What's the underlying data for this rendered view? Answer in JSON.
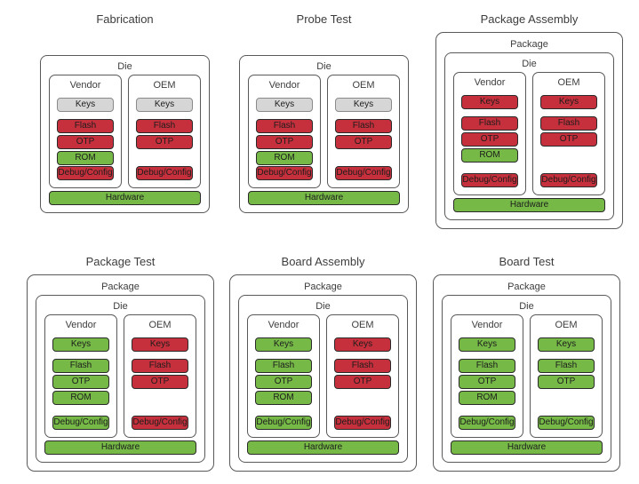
{
  "palette": {
    "red": "#c6303c",
    "green": "#76b947",
    "gray": "#d6d6d6"
  },
  "stages": [
    {
      "title": "Fabrication",
      "die_label": "Die",
      "vendor": {
        "label": "Vendor",
        "blocks": [
          {
            "label": "Keys",
            "color": "gray"
          },
          {
            "label": "Flash",
            "color": "red"
          },
          {
            "label": "OTP",
            "color": "red"
          },
          {
            "label": "ROM",
            "color": "green"
          },
          {
            "label": "Debug/Config",
            "color": "red"
          }
        ]
      },
      "oem": {
        "label": "OEM",
        "blocks": [
          {
            "label": "Keys",
            "color": "gray"
          },
          {
            "label": "Flash",
            "color": "red"
          },
          {
            "label": "OTP",
            "color": "red"
          },
          {
            "label": "Debug/Config",
            "color": "red"
          }
        ]
      },
      "hardware": {
        "label": "Hardware",
        "color": "green"
      }
    },
    {
      "title": "Probe Test",
      "die_label": "Die",
      "vendor": {
        "label": "Vendor",
        "blocks": [
          {
            "label": "Keys",
            "color": "gray"
          },
          {
            "label": "Flash",
            "color": "red"
          },
          {
            "label": "OTP",
            "color": "red"
          },
          {
            "label": "ROM",
            "color": "green"
          },
          {
            "label": "Debug/Config",
            "color": "red"
          }
        ]
      },
      "oem": {
        "label": "OEM",
        "blocks": [
          {
            "label": "Keys",
            "color": "gray"
          },
          {
            "label": "Flash",
            "color": "red"
          },
          {
            "label": "OTP",
            "color": "red"
          },
          {
            "label": "Debug/Config",
            "color": "red"
          }
        ]
      },
      "hardware": {
        "label": "Hardware",
        "color": "green"
      }
    },
    {
      "title": "Package Assembly",
      "package_label": "Package",
      "die_label": "Die",
      "vendor": {
        "label": "Vendor",
        "blocks": [
          {
            "label": "Keys",
            "color": "red"
          },
          {
            "label": "Flash",
            "color": "red"
          },
          {
            "label": "OTP",
            "color": "red"
          },
          {
            "label": "ROM",
            "color": "green"
          },
          {
            "label": "Debug/Config",
            "color": "red"
          }
        ]
      },
      "oem": {
        "label": "OEM",
        "blocks": [
          {
            "label": "Keys",
            "color": "red"
          },
          {
            "label": "Flash",
            "color": "red"
          },
          {
            "label": "OTP",
            "color": "red"
          },
          {
            "label": "Debug/Config",
            "color": "red"
          }
        ]
      },
      "hardware": {
        "label": "Hardware",
        "color": "green"
      }
    },
    {
      "title": "Package Test",
      "package_label": "Package",
      "die_label": "Die",
      "vendor": {
        "label": "Vendor",
        "blocks": [
          {
            "label": "Keys",
            "color": "green"
          },
          {
            "label": "Flash",
            "color": "green"
          },
          {
            "label": "OTP",
            "color": "green"
          },
          {
            "label": "ROM",
            "color": "green"
          },
          {
            "label": "Debug/Config",
            "color": "green"
          }
        ]
      },
      "oem": {
        "label": "OEM",
        "blocks": [
          {
            "label": "Keys",
            "color": "red"
          },
          {
            "label": "Flash",
            "color": "red"
          },
          {
            "label": "OTP",
            "color": "red"
          },
          {
            "label": "Debug/Config",
            "color": "red"
          }
        ]
      },
      "hardware": {
        "label": "Hardware",
        "color": "green"
      }
    },
    {
      "title": "Board Assembly",
      "package_label": "Package",
      "die_label": "Die",
      "vendor": {
        "label": "Vendor",
        "blocks": [
          {
            "label": "Keys",
            "color": "green"
          },
          {
            "label": "Flash",
            "color": "green"
          },
          {
            "label": "OTP",
            "color": "green"
          },
          {
            "label": "ROM",
            "color": "green"
          },
          {
            "label": "Debug/Config",
            "color": "green"
          }
        ]
      },
      "oem": {
        "label": "OEM",
        "blocks": [
          {
            "label": "Keys",
            "color": "red"
          },
          {
            "label": "Flash",
            "color": "red"
          },
          {
            "label": "OTP",
            "color": "red"
          },
          {
            "label": "Debug/Config",
            "color": "red"
          }
        ]
      },
      "hardware": {
        "label": "Hardware",
        "color": "green"
      }
    },
    {
      "title": "Board Test",
      "package_label": "Package",
      "die_label": "Die",
      "vendor": {
        "label": "Vendor",
        "blocks": [
          {
            "label": "Keys",
            "color": "green"
          },
          {
            "label": "Flash",
            "color": "green"
          },
          {
            "label": "OTP",
            "color": "green"
          },
          {
            "label": "ROM",
            "color": "green"
          },
          {
            "label": "Debug/Config",
            "color": "green"
          }
        ]
      },
      "oem": {
        "label": "OEM",
        "blocks": [
          {
            "label": "Keys",
            "color": "green"
          },
          {
            "label": "Flash",
            "color": "green"
          },
          {
            "label": "OTP",
            "color": "green"
          },
          {
            "label": "Debug/Config",
            "color": "green"
          }
        ]
      },
      "hardware": {
        "label": "Hardware",
        "color": "green"
      }
    }
  ]
}
